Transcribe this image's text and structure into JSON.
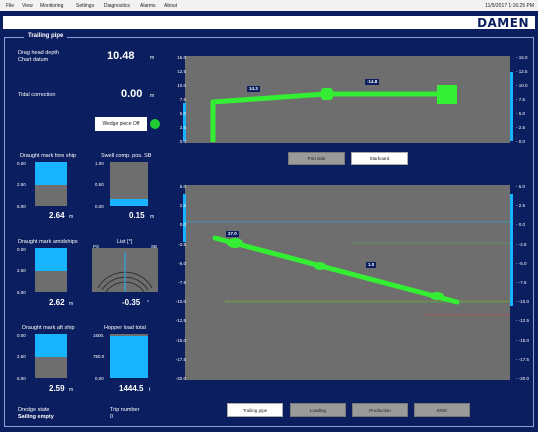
{
  "menu": {
    "items": [
      "File",
      "View",
      "Monitoring",
      "Settings",
      "Diagnostics",
      "Alarms",
      "About"
    ],
    "datetime": "11/5/2017 1:16:25 PM"
  },
  "brand": "DAMEN",
  "panel_title": "Trailing pipe",
  "drag_head": {
    "label1": "Drag head depth",
    "label2": "Chart datum",
    "value": "10.48",
    "unit": "m"
  },
  "tidal": {
    "label": "Tidal correction",
    "value": "0.00",
    "unit": "m"
  },
  "wedge": {
    "label": "Wedge piece Off",
    "status_color": "#22cc33"
  },
  "draught_fore": {
    "title": "Draught mark fore ship",
    "ticks": [
      "0.00",
      "2.50",
      "5.00"
    ],
    "value": "2.64",
    "unit": "m",
    "level": 0.53
  },
  "swell": {
    "title": "Swell comp. pos. SB",
    "ticks": [
      "1.00",
      "0.50",
      "0.00"
    ],
    "value": "0.15",
    "unit": "m",
    "level": 0.15
  },
  "draught_mid": {
    "title": "Draught mark amidships",
    "ticks": [
      "0.00",
      "2.50",
      "5.00"
    ],
    "value": "2.62",
    "unit": "m",
    "level": 0.52
  },
  "list": {
    "title": "List [°]",
    "ps": "PS",
    "sb": "SB",
    "value": "-0.35",
    "unit": "°"
  },
  "draught_aft": {
    "title": "Draught mark aft ship",
    "ticks": [
      "0.00",
      "2.50",
      "5.00"
    ],
    "value": "2.59",
    "unit": "m",
    "level": 0.52
  },
  "hopper": {
    "title": "Hopper load total",
    "ticks": [
      "1500.",
      "750.0",
      "0.00"
    ],
    "value": "1444.5",
    "unit": "t",
    "level": 0.96
  },
  "dredge_state": {
    "label": "Dredge state",
    "value": "Sailing empty"
  },
  "trip": {
    "label": "Trip number",
    "value": "0"
  },
  "top_axis": {
    "ticks": [
      "15.0",
      "12.5",
      "10.0",
      "7.5",
      "5.0",
      "2.5",
      "0.0"
    ]
  },
  "top_tags": {
    "angle1": "14.3",
    "angle2": "-14.8"
  },
  "side_buttons": {
    "port": "Port side",
    "starboard": "Starboard"
  },
  "bottom_axis": {
    "ticks": [
      "5.0",
      "2.5",
      "0.0",
      "-2.5",
      "-5.0",
      "-7.5",
      "-10.0",
      "-12.5",
      "-15.0",
      "-17.5",
      "-20.0"
    ]
  },
  "bottom_tags": {
    "angle1": "27.0",
    "angle2": "1.0"
  },
  "nav": {
    "trailing": "Trailing pipe",
    "loading": "Loading",
    "production": "Production",
    "ems": "EMS"
  },
  "colors": {
    "pipe": "#33ee33",
    "background": "#0b1e5f",
    "plot": "#6e6e6e",
    "gauge": "#19b4ff"
  }
}
